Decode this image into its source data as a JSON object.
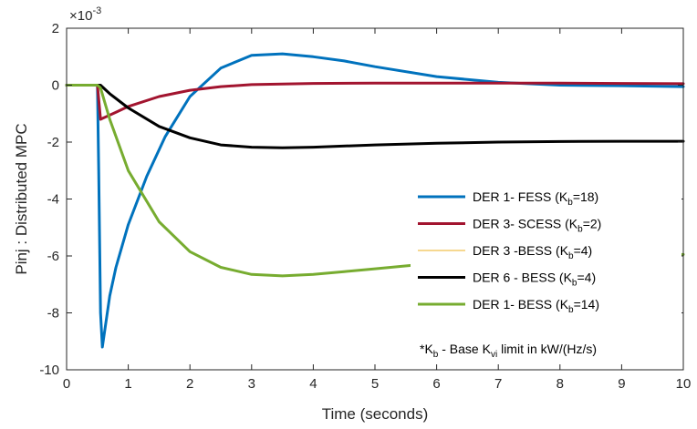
{
  "chart_data": {
    "type": "line",
    "xlabel": "Time (seconds)",
    "ylabel": "Pinj : Distributed MPC",
    "exponent_label": "×10",
    "exponent_power": "-3",
    "xlim": [
      0,
      10
    ],
    "ylim": [
      -10,
      2
    ],
    "xticks": [
      0,
      1,
      2,
      3,
      4,
      5,
      6,
      7,
      8,
      9,
      10
    ],
    "yticks": [
      2,
      0,
      -2,
      -4,
      -6,
      -8,
      -10
    ],
    "grid": false,
    "legend_position": "lower-right",
    "series": [
      {
        "name": "DER 1- FESS (Kb=18)",
        "legend_main": "DER 1- FESS (K",
        "legend_sub": "b",
        "legend_tail": "=18)",
        "color": "#0072BD",
        "width": 3,
        "x": [
          0,
          0.5,
          0.52,
          0.55,
          0.58,
          0.62,
          0.7,
          0.8,
          1.0,
          1.3,
          1.6,
          2.0,
          2.5,
          3.0,
          3.5,
          4.0,
          4.5,
          5.0,
          6.0,
          7.0,
          8.0,
          9.0,
          10.0
        ],
        "y": [
          0,
          0,
          -3,
          -8,
          -9.2,
          -8.6,
          -7.4,
          -6.4,
          -4.9,
          -3.2,
          -1.8,
          -0.4,
          0.6,
          1.05,
          1.1,
          1.0,
          0.85,
          0.65,
          0.3,
          0.1,
          0.0,
          -0.02,
          -0.05
        ]
      },
      {
        "name": "DER 3- SCESS (Kb=2)",
        "legend_main": "DER 3- SCESS (K",
        "legend_sub": "b",
        "legend_tail": "=2)",
        "color": "#A2142F",
        "width": 3,
        "x": [
          0,
          0.5,
          0.55,
          0.6,
          0.8,
          1.0,
          1.5,
          2.0,
          2.5,
          3.0,
          4.0,
          5.0,
          6.0,
          7.0,
          8.0,
          9.0,
          10.0
        ],
        "y": [
          0,
          0,
          -1.2,
          -1.15,
          -0.95,
          -0.75,
          -0.4,
          -0.18,
          -0.05,
          0.02,
          0.06,
          0.07,
          0.07,
          0.07,
          0.07,
          0.06,
          0.05
        ]
      },
      {
        "name": "DER 3 -BESS (Kb=4)",
        "legend_main": "DER 3 -BESS (K",
        "legend_sub": "b",
        "legend_tail": "=4)",
        "color": "#EDB120",
        "width": 1,
        "x": [],
        "y": []
      },
      {
        "name": "DER 6 - BESS (Kb=4)",
        "legend_main": "DER 6 - BESS (K",
        "legend_sub": "b",
        "legend_tail": "=4)",
        "color": "#000000",
        "width": 3,
        "x": [
          0,
          0.5,
          0.55,
          0.7,
          1.0,
          1.5,
          2.0,
          2.5,
          3.0,
          3.5,
          4.0,
          5.0,
          6.0,
          7.0,
          8.0,
          9.0,
          10.0
        ],
        "y": [
          0,
          0,
          0,
          -0.3,
          -0.8,
          -1.45,
          -1.85,
          -2.1,
          -2.18,
          -2.2,
          -2.18,
          -2.1,
          -2.04,
          -2.0,
          -1.98,
          -1.97,
          -1.97
        ]
      },
      {
        "name": "DER 1- BESS (Kb=14)",
        "legend_main": "DER 1- BESS (K",
        "legend_sub": "b",
        "legend_tail": "=14)",
        "color": "#77AC30",
        "width": 3,
        "x": [
          0,
          0.5,
          0.55,
          0.7,
          1.0,
          1.5,
          2.0,
          2.5,
          3.0,
          3.5,
          4.0,
          4.5,
          5.0,
          6.0,
          7.0,
          8.0,
          9.0,
          10.0
        ],
        "y": [
          0,
          0,
          -0.1,
          -1.2,
          -3.0,
          -4.8,
          -5.85,
          -6.4,
          -6.65,
          -6.7,
          -6.65,
          -6.55,
          -6.45,
          -6.25,
          -6.1,
          -6.0,
          -5.97,
          -5.95
        ]
      }
    ],
    "annotation": {
      "prefix": "*K",
      "sub1": "b",
      "middle": " - Base K",
      "sub2": "vi",
      "suffix": " limit in kW/(Hz/s)"
    }
  }
}
